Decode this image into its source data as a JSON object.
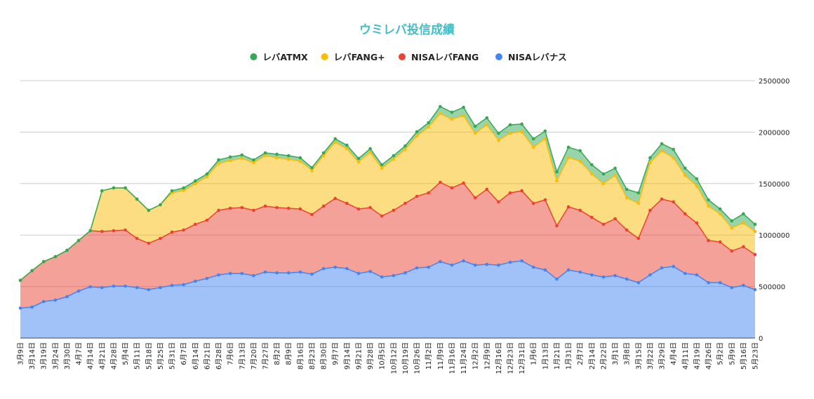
{
  "chart_data": {
    "type": "area",
    "stacked": true,
    "title": "ウミレバ投信成績",
    "title_color": "#46bdc6",
    "legend_position": "top",
    "grid": true,
    "ylim": [
      0,
      2500000
    ],
    "y_ticks": [
      "0",
      "500000",
      "1000000",
      "1500000",
      "2000000",
      "2500000"
    ],
    "y_axis_side": "right",
    "categories": [
      "3月9日",
      "3月14日",
      "3月19日",
      "3月24日",
      "3月30日",
      "4月7日",
      "4月14日",
      "4月21日",
      "4月28日",
      "5月4日",
      "5月11日",
      "5月18日",
      "5月25日",
      "5月31日",
      "6月7日",
      "6月14日",
      "6月21日",
      "6月28日",
      "7月6日",
      "7月13日",
      "7月20日",
      "7月27日",
      "8月2日",
      "8月9日",
      "8月16日",
      "8月23日",
      "8月30日",
      "9月7日",
      "9月14日",
      "9月21日",
      "9月28日",
      "10月5日",
      "10月12日",
      "10月19日",
      "10月26日",
      "11月2日",
      "11月9日",
      "11月16日",
      "11月24日",
      "12月2日",
      "12月9日",
      "12月16日",
      "12月23日",
      "12月31日",
      "1月6日",
      "1月13日",
      "1月21日",
      "1月31日",
      "2月7日",
      "2月14日",
      "2月22日",
      "3月1日",
      "3月8日",
      "3月15日",
      "3月22日",
      "3月29日",
      "4月4日",
      "4月11日",
      "4月19日",
      "4月26日",
      "5月2日",
      "5月9日",
      "5月16日",
      "5月23日"
    ],
    "legend": [
      "レバATMX",
      "レバFANG+",
      "NISAレバFANG",
      "NISAレバナス"
    ],
    "series": [
      {
        "name": "NISAレバナス",
        "color": "#4285f4",
        "values": [
          290000,
          300000,
          354000,
          368000,
          402000,
          456000,
          497000,
          490000,
          504000,
          504000,
          490000,
          470000,
          490000,
          511000,
          518000,
          552000,
          579000,
          613000,
          627000,
          627000,
          606000,
          640000,
          633000,
          633000,
          640000,
          620000,
          674000,
          688000,
          674000,
          627000,
          647000,
          593000,
          606000,
          633000,
          681000,
          688000,
          742000,
          708000,
          749000,
          708000,
          715000,
          708000,
          736000,
          749000,
          688000,
          661000,
          572000,
          661000,
          640000,
          613000,
          593000,
          606000,
          572000,
          538000,
          613000,
          681000,
          695000,
          627000,
          613000,
          538000,
          538000,
          490000,
          511000,
          470000
        ]
      },
      {
        "name": "NISAレバFANG",
        "color": "#ea4335",
        "values": [
          270000,
          354000,
          388000,
          422000,
          449000,
          491000,
          545000,
          545000,
          538000,
          545000,
          477000,
          450000,
          477000,
          518000,
          531000,
          552000,
          565000,
          627000,
          633000,
          640000,
          634000,
          641000,
          634000,
          627000,
          613000,
          579000,
          607000,
          668000,
          634000,
          626000,
          620000,
          592000,
          634000,
          675000,
          695000,
          722000,
          770000,
          750000,
          756000,
          654000,
          729000,
          614000,
          674000,
          681000,
          620000,
          681000,
          518000,
          613000,
          600000,
          559000,
          511000,
          552000,
          477000,
          429000,
          627000,
          668000,
          627000,
          579000,
          504000,
          409000,
          395000,
          355000,
          375000,
          341000
        ]
      },
      {
        "name": "レバFANG+",
        "color": "#fbbc04",
        "values": [
          0,
          0,
          0,
          0,
          0,
          0,
          0,
          395000,
          416000,
          409000,
          382000,
          320000,
          327000,
          381000,
          382000,
          395000,
          423000,
          456000,
          463000,
          477000,
          463000,
          490000,
          484000,
          477000,
          464000,
          429000,
          490000,
          545000,
          531000,
          457000,
          538000,
          464000,
          497000,
          524000,
          586000,
          640000,
          668000,
          667000,
          654000,
          627000,
          627000,
          599000,
          579000,
          573000,
          545000,
          593000,
          436000,
          477000,
          477000,
          422000,
          395000,
          422000,
          313000,
          341000,
          463000,
          470000,
          429000,
          374000,
          361000,
          334000,
          273000,
          224000,
          231000,
          224000
        ]
      },
      {
        "name": "レバATMX",
        "color": "#34a853",
        "values": [
          0,
          0,
          0,
          0,
          0,
          0,
          0,
          0,
          0,
          0,
          0,
          0,
          0,
          20000,
          27000,
          27000,
          27000,
          34000,
          35000,
          34000,
          27000,
          27000,
          34000,
          34000,
          34000,
          27000,
          27000,
          34000,
          34000,
          34000,
          34000,
          34000,
          34000,
          34000,
          41000,
          41000,
          68000,
          68000,
          82000,
          68000,
          68000,
          68000,
          82000,
          75000,
          82000,
          75000,
          88000,
          102000,
          102000,
          89000,
          95000,
          69000,
          82000,
          102000,
          48000,
          68000,
          81000,
          69000,
          68000,
          61000,
          47000,
          69000,
          89000,
          69000
        ]
      }
    ]
  }
}
